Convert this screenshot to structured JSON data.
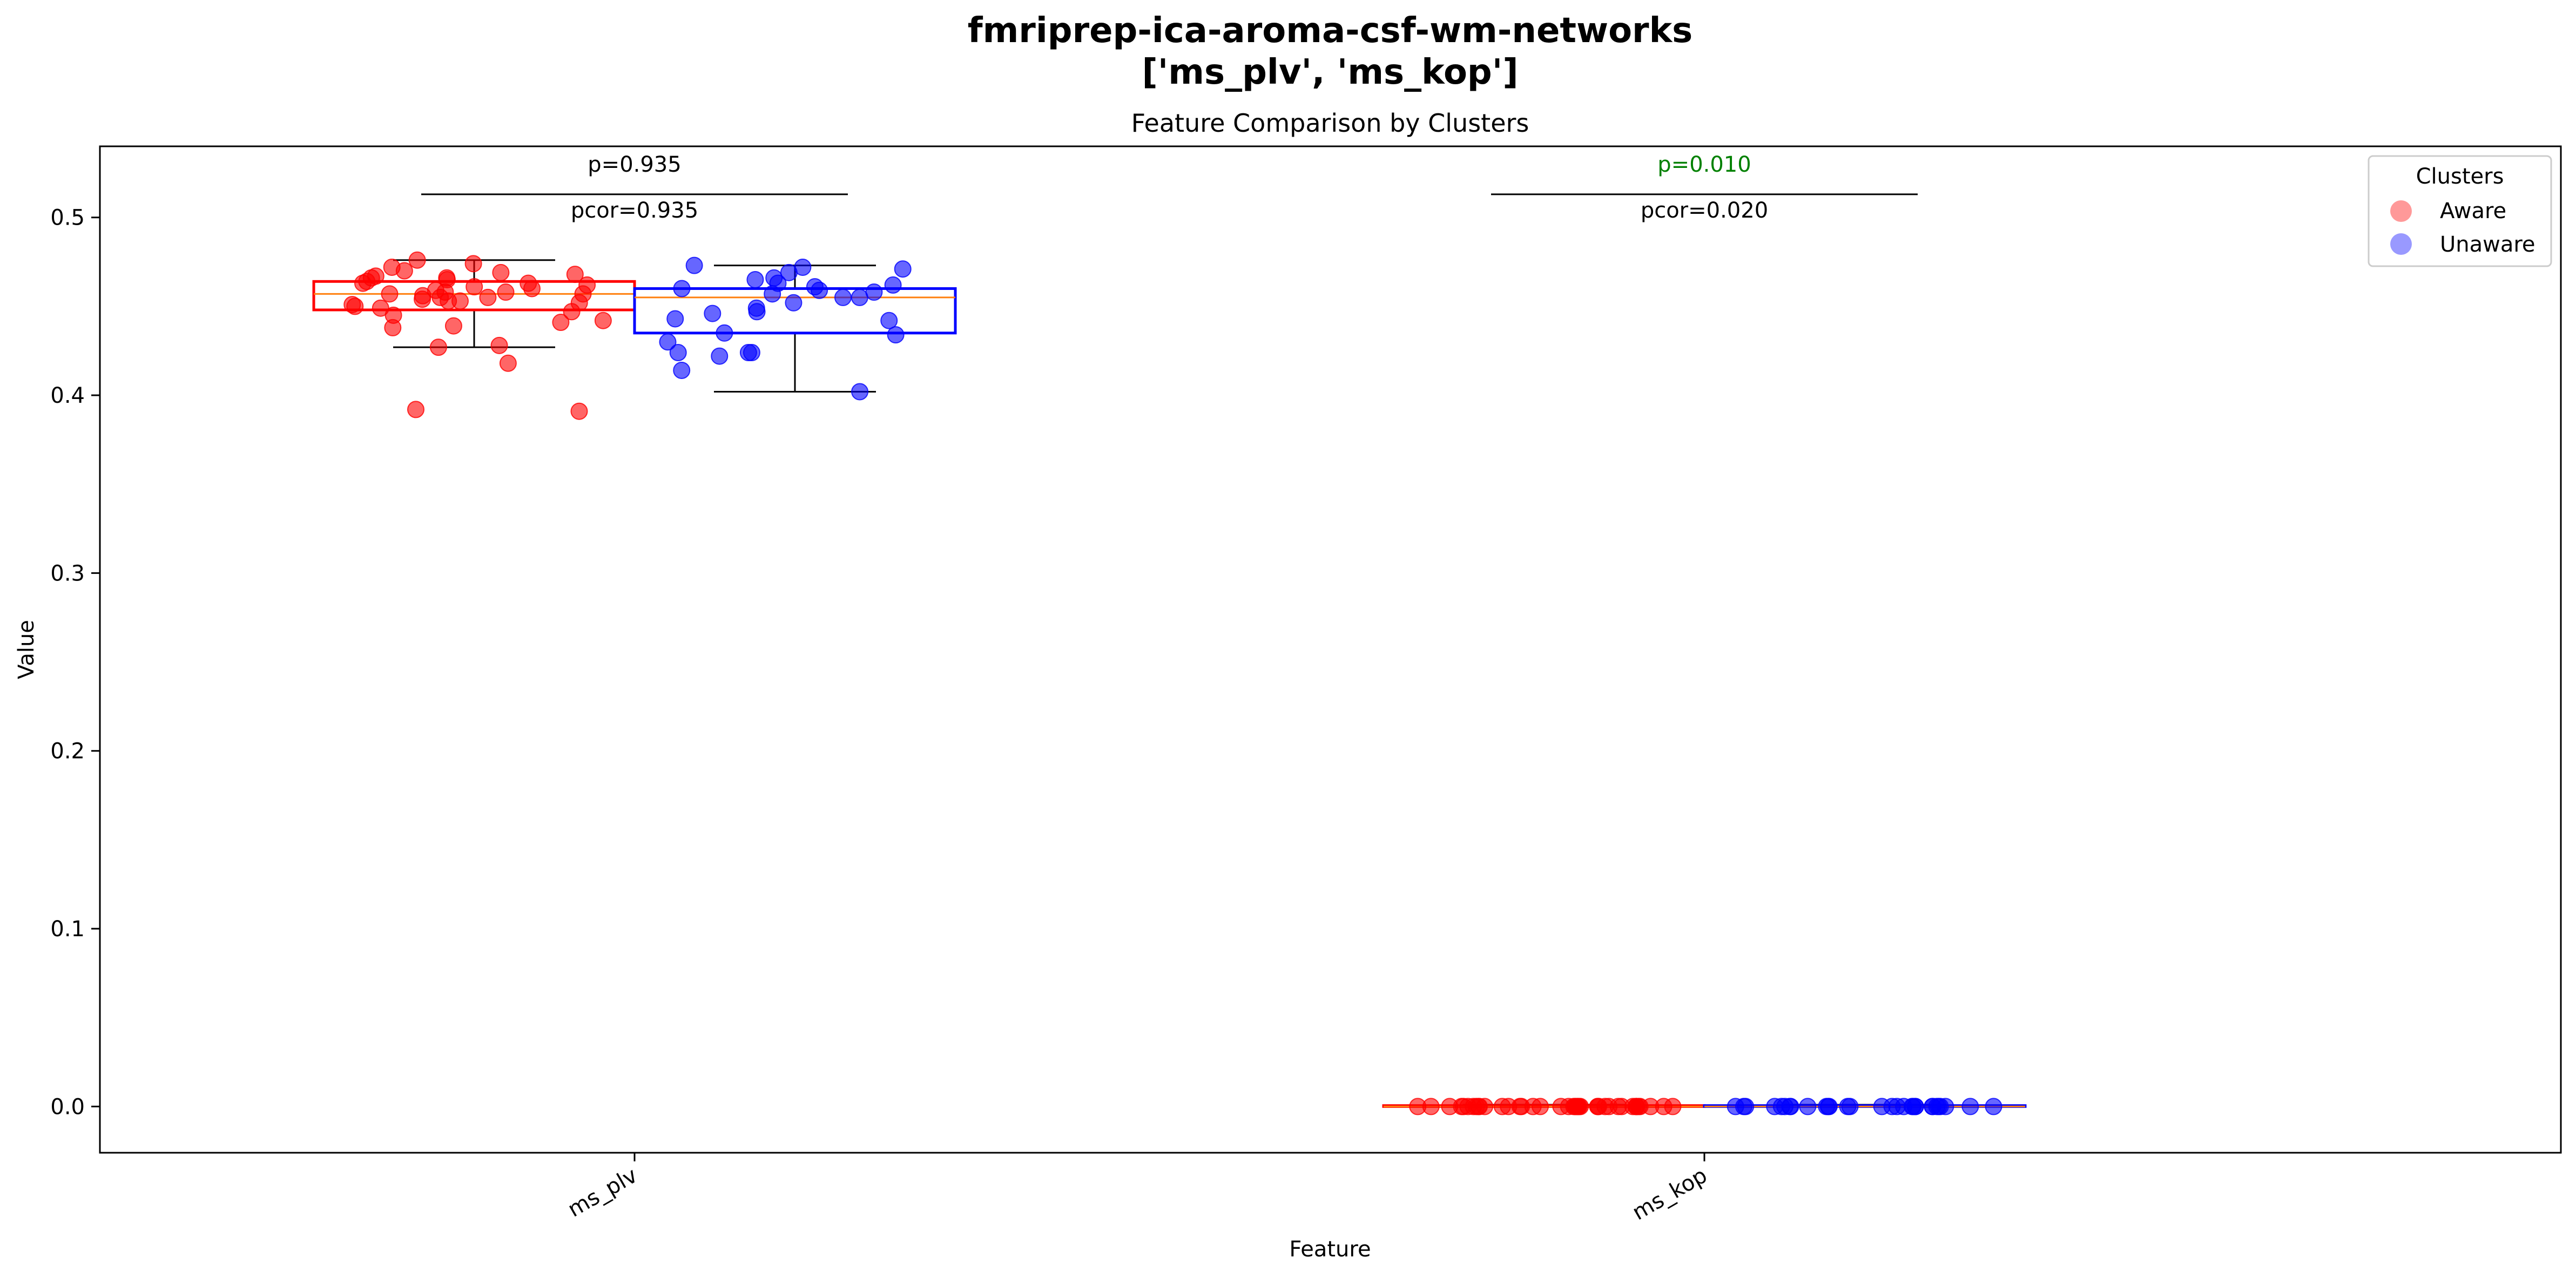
{
  "chart_data": {
    "type": "box",
    "title": "fmriprep-ica-aroma-csf-wm-networks",
    "title_line2": "['ms_plv', 'ms_kop']",
    "subtitle": "Feature Comparison by Clusters",
    "xlabel": "Feature",
    "ylabel": "Value",
    "ylim": [
      -0.026,
      0.54
    ],
    "yticks": [
      "0.0",
      "0.1",
      "0.2",
      "0.3",
      "0.4",
      "0.5"
    ],
    "ytick_values": [
      0.0,
      0.1,
      0.2,
      0.3,
      0.4,
      0.5
    ],
    "categories": [
      "ms_plv",
      "ms_kop"
    ],
    "legend": {
      "title": "Clusters",
      "position": "top-right"
    },
    "series": [
      {
        "name": "Aware",
        "color": "#ff0000",
        "boxes": [
          {
            "category": "ms_plv",
            "whisker_low": 0.427,
            "q1": 0.448,
            "median": 0.457,
            "q3": 0.464,
            "whisker_high": 0.476
          },
          {
            "category": "ms_kop",
            "whisker_low": 0.0,
            "q1": 0.0,
            "median": 0.0,
            "q3": 0.0005,
            "whisker_high": 0.001
          }
        ],
        "points": [
          [
            0.468,
            0.457,
            0.463,
            0.466,
            0.452,
            0.449,
            0.455,
            0.461,
            0.458,
            0.47,
            0.467,
            0.462,
            0.465,
            0.472,
            0.474,
            0.476,
            0.466,
            0.46,
            0.456,
            0.454,
            0.451,
            0.447,
            0.445,
            0.441,
            0.439,
            0.438,
            0.455,
            0.459,
            0.463,
            0.469,
            0.464,
            0.457,
            0.453,
            0.45,
            0.442,
            0.427,
            0.418,
            0.428,
            0.391,
            0.392,
            0.458,
            0.453
          ],
          [
            0.0,
            0.0,
            0.0,
            0.0,
            0.0,
            0.0,
            0.0,
            0.0,
            0.0,
            0.0,
            0.0,
            0.0,
            0.0,
            0.0,
            0.0,
            0.0,
            0.0,
            0.0,
            0.0,
            0.0,
            0.0,
            0.0,
            0.0,
            0.0,
            0.0,
            0.0,
            0.0,
            0.0,
            0.0,
            0.0,
            0.0,
            0.0,
            0.0,
            0.0,
            0.0,
            0.0,
            0.0,
            0.0,
            0.0,
            0.0,
            0.0,
            0.0
          ]
        ]
      },
      {
        "name": "Unaware",
        "color": "#0000ff",
        "boxes": [
          {
            "category": "ms_plv",
            "whisker_low": 0.402,
            "q1": 0.435,
            "median": 0.455,
            "q3": 0.46,
            "whisker_high": 0.473
          },
          {
            "category": "ms_kop",
            "whisker_low": 0.0,
            "q1": 0.0,
            "median": 0.0,
            "q3": 0.0005,
            "whisker_high": 0.001
          }
        ],
        "points": [
          [
            0.471,
            0.465,
            0.466,
            0.473,
            0.469,
            0.472,
            0.458,
            0.461,
            0.455,
            0.457,
            0.46,
            0.452,
            0.449,
            0.447,
            0.446,
            0.443,
            0.442,
            0.435,
            0.434,
            0.43,
            0.424,
            0.424,
            0.422,
            0.414,
            0.402,
            0.462,
            0.455,
            0.459,
            0.463,
            0.424
          ],
          [
            0.0,
            0.0,
            0.0,
            0.0,
            0.0,
            0.0,
            0.0,
            0.0,
            0.0,
            0.0,
            0.0,
            0.0,
            0.0,
            0.0,
            0.0,
            0.0,
            0.0,
            0.0,
            0.0,
            0.0,
            0.0,
            0.0,
            0.0,
            0.0,
            0.0,
            0.0,
            0.0,
            0.0,
            0.0,
            0.0
          ]
        ]
      }
    ],
    "annotations": [
      {
        "category": "ms_plv",
        "p": "p=0.935",
        "pcor": "pcor=0.935",
        "p_color": "#000000",
        "line_y": 0.513
      },
      {
        "category": "ms_kop",
        "p": "p=0.010",
        "pcor": "pcor=0.020",
        "p_color": "#008000",
        "line_y": 0.513
      }
    ]
  }
}
